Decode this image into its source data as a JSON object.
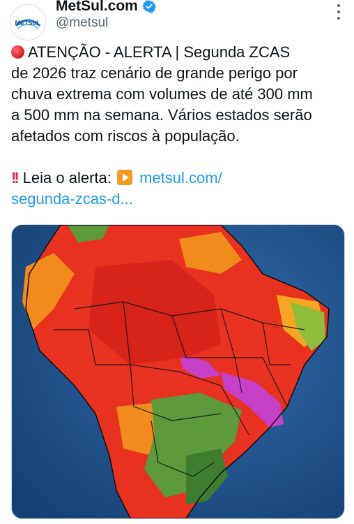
{
  "author": {
    "display_name": "MetSul.com",
    "handle": "@metsul",
    "avatar_text": "METSUL",
    "verified": true,
    "verified_color": "#1d9bf0"
  },
  "tweet": {
    "line1_icon": "red-circle-emoji",
    "line1": "ATENÇÃO - ALERTA | Segunda ZCAS",
    "line2": "de 2026 traz cenário de grande perigo por",
    "line3": "chuva extrema com volumes de até 300 mm",
    "line4": "a 500 mm na semana. Vários estados serão",
    "line5": "afetados com riscos à população.",
    "alert_icon": "double-exclamation-emoji",
    "alert_prefix": "Leia o alerta:",
    "play_icon": "play-button-emoji",
    "link_line1": "metsul.com/",
    "link_line2": "segunda-zcas-d..."
  },
  "media": {
    "description_icon": "rainfall-forecast-map",
    "accent_colors": {
      "ocean": "#1a4f8a",
      "heavy_rain": "#e8321f",
      "extreme_rain": "#c640c8",
      "moderate_rain": "#f28b1e",
      "light_rain": "#5c9a3c"
    }
  },
  "colors": {
    "link": "#1d9bf0",
    "text": "#0f1419",
    "secondary": "#536471"
  }
}
